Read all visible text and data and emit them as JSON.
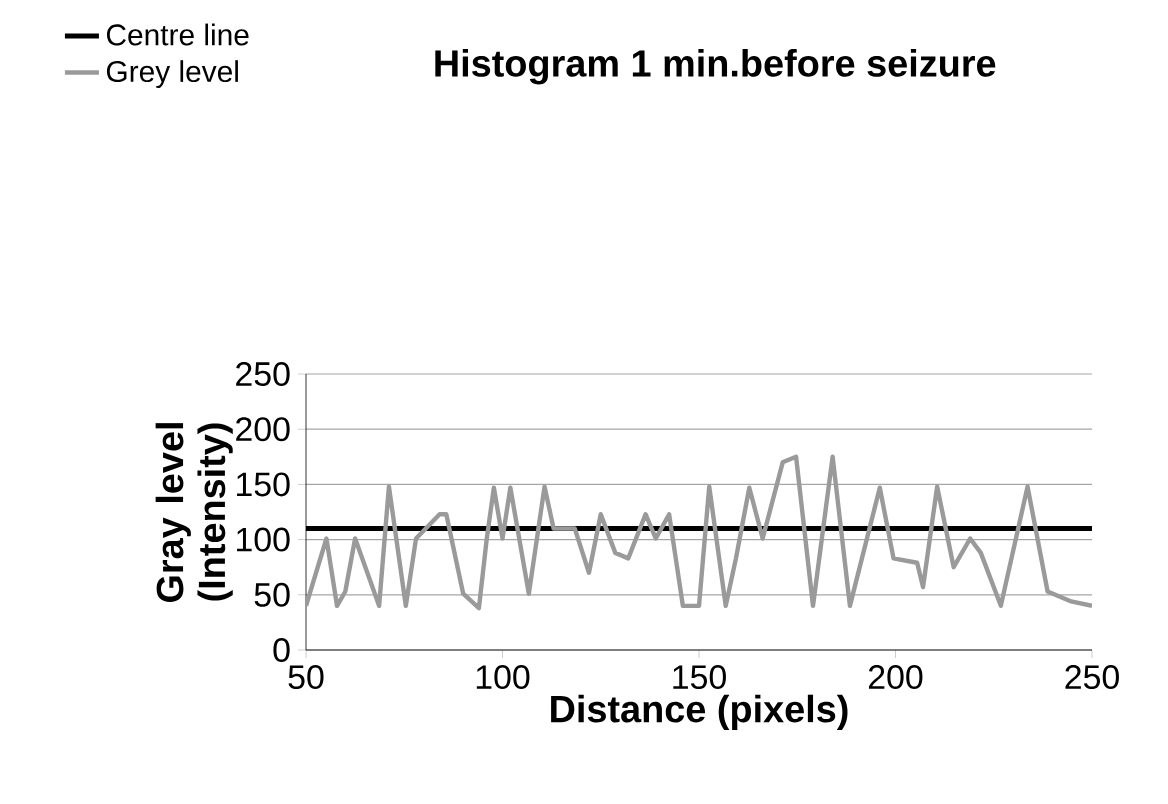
{
  "chart_data": {
    "type": "line",
    "title": "Histogram 1 min.before seizure",
    "xlabel": "Distance (pixels)",
    "ylabel": "Gray level (Intensity)",
    "xlim": [
      50,
      250
    ],
    "xticks": [
      50,
      100,
      150,
      200,
      250
    ],
    "ylim": [
      0,
      250
    ],
    "yticks": [
      0,
      50,
      100,
      150,
      200,
      250
    ],
    "grid": "y",
    "legend": "top left",
    "marker": "none",
    "series": [
      {
        "name": "Centre line",
        "color": "#000000",
        "x": [
          50,
          250
        ],
        "values": [
          110,
          110
        ],
        "line_style": "solid"
      },
      {
        "name": "Grey level",
        "color": "#9a9a9a",
        "line_style": "solid",
        "x": [
          50,
          55.2,
          57.9,
          60,
          62.5,
          68.6,
          71.1,
          75.4,
          78,
          84,
          85.7,
          90,
          94,
          96,
          97.8,
          100,
          102,
          106.7,
          110.7,
          113,
          118.4,
          122,
          125,
          128.7,
          132,
          136.4,
          139,
          142.4,
          145.9,
          150,
          152.6,
          156.8,
          159.4,
          162.8,
          166.2,
          171.3,
          174.7,
          179,
          184,
          188.4,
          196,
          199.5,
          205.5,
          207,
          210.6,
          214.8,
          219,
          221.7,
          226.8,
          233.6,
          238.7,
          244.7,
          250
        ],
        "values": [
          40,
          101,
          40,
          53,
          101,
          40,
          148,
          40,
          101,
          123,
          123,
          51,
          38,
          101,
          147,
          101,
          147,
          51,
          148,
          110,
          110,
          70,
          123,
          88,
          83,
          123,
          101,
          123,
          40,
          40,
          148,
          40,
          83,
          147,
          101,
          170,
          175,
          40,
          175,
          40,
          147,
          83,
          79,
          57,
          148,
          75,
          101,
          88,
          40,
          148,
          53,
          44,
          40
        ]
      }
    ]
  }
}
